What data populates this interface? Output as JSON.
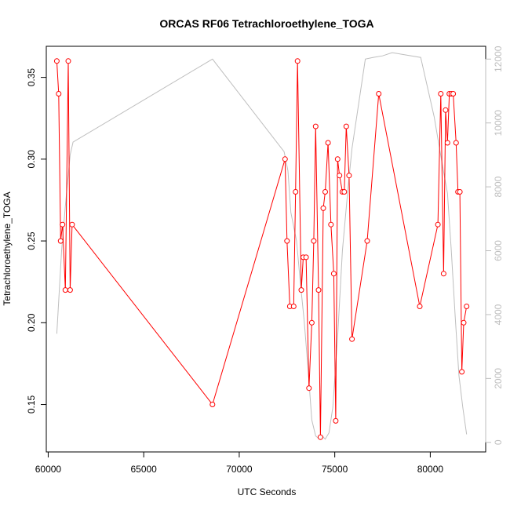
{
  "chart_data": {
    "type": "line",
    "title": "ORCAS RF06 Tetrachloroethylene_TOGA",
    "xlabel": "UTC Seconds",
    "ylabel": "Tetrachloroethylene_TOGA",
    "xlim": [
      59900,
      82900
    ],
    "ylim": [
      0.121,
      0.369
    ],
    "y2lim": [
      -300,
      12400
    ],
    "x_ticks": [
      60000,
      65000,
      70000,
      75000,
      80000
    ],
    "x_tick_labels": [
      "60000",
      "65000",
      "70000",
      "75000",
      "80000"
    ],
    "y_ticks": [
      0.15,
      0.2,
      0.25,
      0.3,
      0.35
    ],
    "y_tick_labels": [
      "0.15",
      "0.20",
      "0.25",
      "0.30",
      "0.35"
    ],
    "y2_ticks": [
      0,
      2000,
      4000,
      6000,
      8000,
      10000,
      12000
    ],
    "y2_tick_labels": [
      "0",
      "2000",
      "4000",
      "6000",
      "8000",
      "10000",
      "12000"
    ],
    "grid": false,
    "colors": {
      "main": "#ff0000",
      "secondary": "#bebebe"
    },
    "series": [
      {
        "color": "#ff0000",
        "axis": "left",
        "markers": "open-circle",
        "x": [
          60450,
          60550,
          60650,
          60750,
          60900,
          61050,
          61150,
          61250,
          68600,
          72400,
          72500,
          72650,
          72850,
          72950,
          73050,
          73250,
          73350,
          73500,
          73650,
          73800,
          73900,
          74000,
          74150,
          74250,
          74400,
          74500,
          74650,
          74800,
          74950,
          75050,
          75150,
          75250,
          75400,
          75500,
          75600,
          75750,
          75900,
          76700,
          77300,
          79450,
          80400,
          80550,
          80700,
          80800,
          80900,
          81000,
          81100,
          81200,
          81350,
          81450,
          81550,
          81650,
          81750,
          81900
        ],
        "y": [
          0.36,
          0.34,
          0.25,
          0.26,
          0.22,
          0.36,
          0.22,
          0.26,
          0.15,
          0.3,
          0.25,
          0.21,
          0.21,
          0.28,
          0.36,
          0.22,
          0.24,
          0.24,
          0.16,
          0.2,
          0.25,
          0.32,
          0.22,
          0.13,
          0.27,
          0.28,
          0.31,
          0.26,
          0.23,
          0.14,
          0.3,
          0.29,
          0.28,
          0.28,
          0.32,
          0.29,
          0.19,
          0.25,
          0.34,
          0.21,
          0.26,
          0.34,
          0.23,
          0.33,
          0.31,
          0.34,
          0.34,
          0.34,
          0.31,
          0.28,
          0.28,
          0.17,
          0.2,
          0.21
        ]
      },
      {
        "color": "#bebebe",
        "axis": "right",
        "markers": "none",
        "x": [
          60450,
          60700,
          60900,
          61150,
          61300,
          68600,
          72350,
          72550,
          72700,
          73000,
          73200,
          73400,
          73600,
          73800,
          74000,
          74200,
          74350,
          74500,
          74700,
          74900,
          75150,
          75400,
          75700,
          75900,
          76600,
          77000,
          77500,
          78000,
          79500,
          80200,
          80600,
          80900,
          81100,
          81300,
          81500,
          81700,
          81900
        ],
        "y": [
          3400,
          6000,
          7400,
          9000,
          9400,
          12000,
          9100,
          8500,
          7200,
          6300,
          5000,
          3800,
          2300,
          700,
          200,
          100,
          200,
          100,
          300,
          1100,
          3300,
          6000,
          8000,
          9200,
          12000,
          12050,
          12100,
          12200,
          12050,
          10200,
          8800,
          7800,
          6000,
          4000,
          2100,
          1100,
          250
        ]
      }
    ]
  }
}
